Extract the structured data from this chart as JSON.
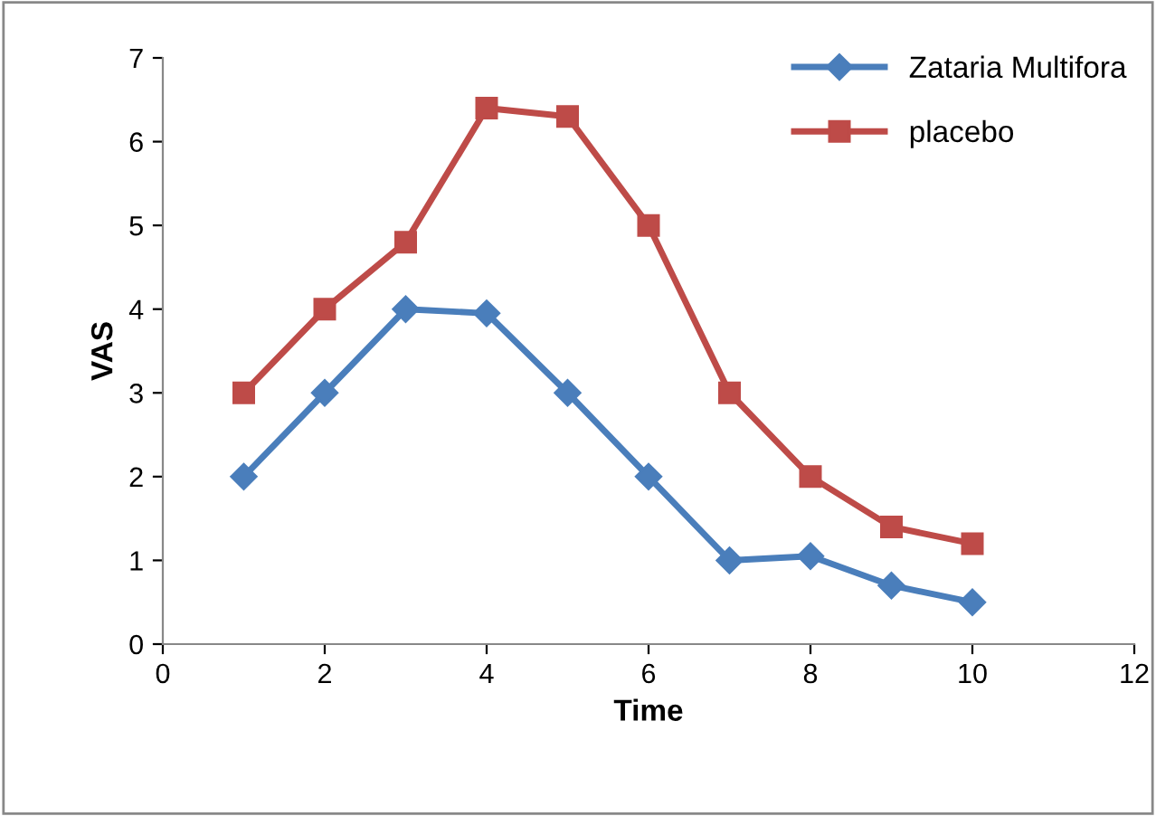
{
  "chart_data": {
    "type": "line",
    "xlabel": "Time",
    "ylabel": "VAS",
    "x": [
      1,
      2,
      3,
      4,
      5,
      6,
      7,
      8,
      9,
      10
    ],
    "series": [
      {
        "name": "Zataria Multifora",
        "color": "#4a7ebb",
        "marker": "diamond",
        "values": [
          2,
          3,
          4,
          3.95,
          3,
          2,
          1,
          1.05,
          0.7,
          0.5
        ]
      },
      {
        "name": "placebo",
        "color": "#be4b48",
        "marker": "square",
        "values": [
          3,
          4,
          4.8,
          6.4,
          6.3,
          5,
          3,
          2,
          1.4,
          1.2
        ]
      }
    ],
    "xlim": [
      0,
      12
    ],
    "xticks": [
      0,
      2,
      4,
      6,
      8,
      10,
      12
    ],
    "ylim": [
      0,
      7
    ],
    "yticks": [
      0,
      1,
      2,
      3,
      4,
      5,
      6,
      7
    ],
    "grid": false,
    "legend": "top right",
    "line_style": "solid"
  }
}
